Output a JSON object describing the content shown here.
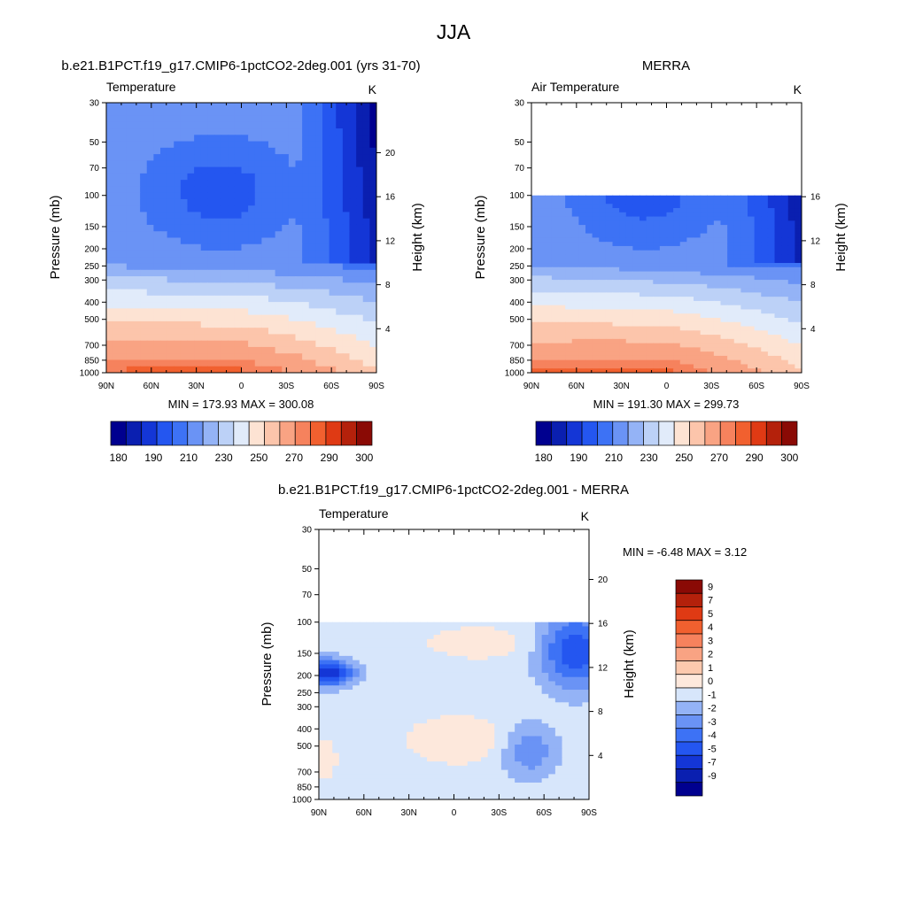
{
  "figure": {
    "title": "JJA"
  },
  "colors": {
    "abs_palette": [
      "#00008f",
      "#0a1fb0",
      "#1436d6",
      "#2456f0",
      "#3d72f5",
      "#6a93f5",
      "#94b3f6",
      "#bcd1f7",
      "#e1ebfa",
      "#fde3d3",
      "#fcc5ab",
      "#f9a383",
      "#f6825d",
      "#f1602f",
      "#df3a14",
      "#b4210b",
      "#8a0a05"
    ],
    "abs_levels": [
      "180",
      "190",
      "200",
      "210",
      "220",
      "230",
      "240",
      "250",
      "260",
      "270",
      "280",
      "290",
      "295",
      "300"
    ],
    "diff_palette": [
      "#00008f",
      "#0a1fb0",
      "#1436d6",
      "#2456f0",
      "#3d72f5",
      "#6a93f5",
      "#94b3f6",
      "#d7e6fb",
      "#fde8dc",
      "#fcc9ae",
      "#f9a383",
      "#f6825d",
      "#f1602f",
      "#df3a14",
      "#b4210b",
      "#8a0a05"
    ],
    "missing": "#ffffff"
  },
  "chart_data": [
    {
      "id": "model",
      "type": "heatmap",
      "title": "b.e21.B1PCT.f19_g17.CMIP6-1pctCO2-2deg.001 (yrs 31-70)",
      "left_label": "Temperature",
      "units": "K",
      "ylabel": "Pressure (mb)",
      "ylabel_right": "Height (km)",
      "x_ticks": [
        "90N",
        "60N",
        "30N",
        "0",
        "30S",
        "60S",
        "90S"
      ],
      "y_ticks": [
        "30",
        "50",
        "70",
        "100",
        "150",
        "200",
        "250",
        "300",
        "400",
        "500",
        "700",
        "850",
        "1000"
      ],
      "height_ticks": [
        "4",
        "8",
        "12",
        "16",
        "20"
      ],
      "stats": "MIN = 173.93  MAX = 300.08",
      "xlim": [
        90,
        -90
      ],
      "ylim": [
        1000,
        30
      ],
      "colorbar_labels": [
        "180",
        "190",
        "210",
        "230",
        "250",
        "270",
        "290",
        "300"
      ],
      "value_range": [
        173.93,
        300.08
      ]
    },
    {
      "id": "obs",
      "type": "heatmap",
      "title": "MERRA",
      "left_label": "Air Temperature",
      "units": "K",
      "ylabel": "Pressure (mb)",
      "ylabel_right": "Height (km)",
      "x_ticks": [
        "90N",
        "60N",
        "30N",
        "0",
        "30S",
        "60S",
        "90S"
      ],
      "y_ticks": [
        "30",
        "50",
        "70",
        "100",
        "150",
        "200",
        "250",
        "300",
        "400",
        "500",
        "700",
        "850",
        "1000"
      ],
      "height_ticks": [
        "4",
        "8",
        "12",
        "16"
      ],
      "stats": "MIN = 191.30  MAX = 299.73",
      "xlim": [
        90,
        -90
      ],
      "ylim": [
        1000,
        30
      ],
      "data_top_mb": 100,
      "colorbar_labels": [
        "180",
        "190",
        "210",
        "230",
        "250",
        "270",
        "290",
        "300"
      ],
      "value_range": [
        191.3,
        299.73
      ]
    },
    {
      "id": "diff",
      "type": "heatmap",
      "title": "b.e21.B1PCT.f19_g17.CMIP6-1pctCO2-2deg.001 - MERRA",
      "left_label": "Temperature",
      "units": "K",
      "ylabel": "Pressure (mb)",
      "ylabel_right": "Height (km)",
      "x_ticks": [
        "90N",
        "60N",
        "30N",
        "0",
        "30S",
        "60S",
        "90S"
      ],
      "y_ticks": [
        "30",
        "50",
        "70",
        "100",
        "150",
        "200",
        "250",
        "300",
        "400",
        "500",
        "700",
        "850",
        "1000"
      ],
      "height_ticks": [
        "4",
        "8",
        "12",
        "16",
        "20"
      ],
      "stats": "MIN =  -6.48  MAX =   3.12",
      "xlim": [
        90,
        -90
      ],
      "ylim": [
        1000,
        30
      ],
      "data_top_mb": 100,
      "colorbar_labels": [
        "9",
        "7",
        "5",
        "4",
        "3",
        "2",
        "1",
        "0",
        "-1",
        "-2",
        "-3",
        "-4",
        "-5",
        "-7",
        "-9"
      ],
      "value_range": [
        -6.48,
        3.12
      ]
    }
  ]
}
